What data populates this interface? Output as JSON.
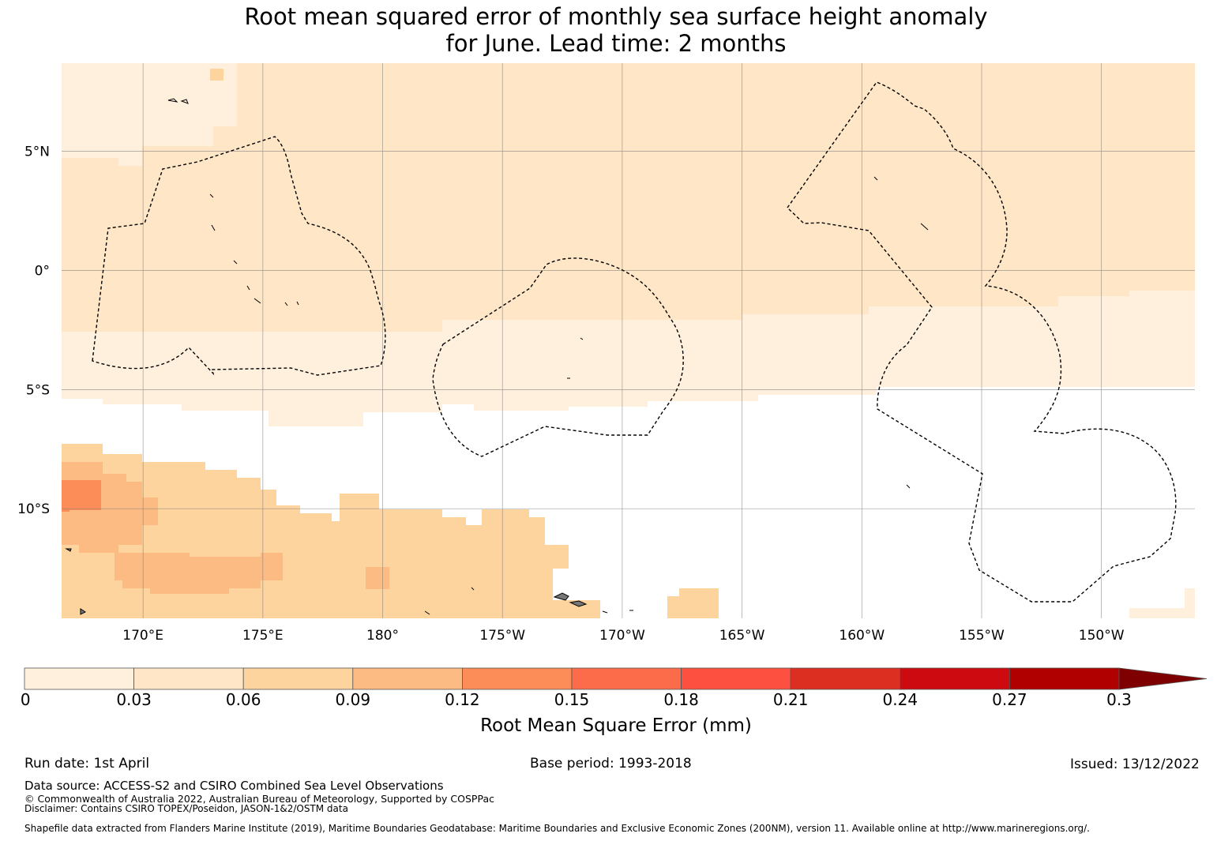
{
  "title": {
    "line1": "Root mean squared error of monthly sea surface height anomaly",
    "line2": "for June. Lead time: 2 months"
  },
  "map": {
    "lat_labels": [
      "5°N",
      "0°",
      "5°S",
      "10°S"
    ],
    "lon_labels": [
      "170°E",
      "175°E",
      "180°",
      "175°W",
      "170°W",
      "165°W",
      "160°W",
      "155°W",
      "150°W"
    ],
    "lat_values": [
      5,
      0,
      -5,
      -10
    ],
    "lon_values": [
      170,
      175,
      180,
      -175,
      -170,
      -165,
      -160,
      -155,
      -150
    ],
    "extent": {
      "lon_min": 166.6,
      "lon_max": 213.9,
      "lat_min": -14.6,
      "lat_max": 8.7
    },
    "gridlines": true,
    "field_class_by_region": [
      {
        "region": "northwest corner",
        "class": 0
      },
      {
        "region": "north band",
        "class": 1
      },
      {
        "region": "equatorial band 2°S–5°S",
        "class": 0
      },
      {
        "region": "south-central",
        "class": 2
      },
      {
        "region": "southwest",
        "class": 3
      },
      {
        "region": "far southwest patch near 10°S",
        "class": 4
      }
    ],
    "boundary_style": "dashed"
  },
  "colorbar": {
    "label": "Root Mean Square Error (mm)",
    "ticks": [
      "0",
      "0.03",
      "0.06",
      "0.09",
      "0.12",
      "0.15",
      "0.18",
      "0.21",
      "0.24",
      "0.27",
      "0.3"
    ],
    "bounds": [
      0,
      0.03,
      0.06,
      0.09,
      0.12,
      0.15,
      0.18,
      0.21,
      0.24,
      0.27,
      0.3
    ],
    "colors": [
      "#fff0dd",
      "#fee6c6",
      "#fdd49e",
      "#fdbb84",
      "#fc8d59",
      "#fc6b4a",
      "#fd5040",
      "#dc2f22",
      "#cc0a10",
      "#b00000",
      "#7f0000"
    ],
    "extend": "max"
  },
  "footer": {
    "run_date": "Run date: 1st April",
    "base_period": "Base period: 1993-2018",
    "issued": "Issued: 13/12/2022",
    "data_source": "Data source: ACCESS-S2 and CSIRO Combined Sea Level Observations",
    "copyright": "© Commonwealth of Australia 2022, Australian Bureau of Meteorology, Supported by COSPPac",
    "disclaimer": "Disclaimer: Contains CSIRO TOPEX/Poseidon, JASON-1&2/OSTM data",
    "shapefile": "Shapefile data extracted from Flanders Marine Institute (2019), Maritime Boundaries Geodatabase: Maritime Boundaries and Exclusive Economic Zones (200NM), version 11. Available online at http://www.marineregions.org/."
  }
}
